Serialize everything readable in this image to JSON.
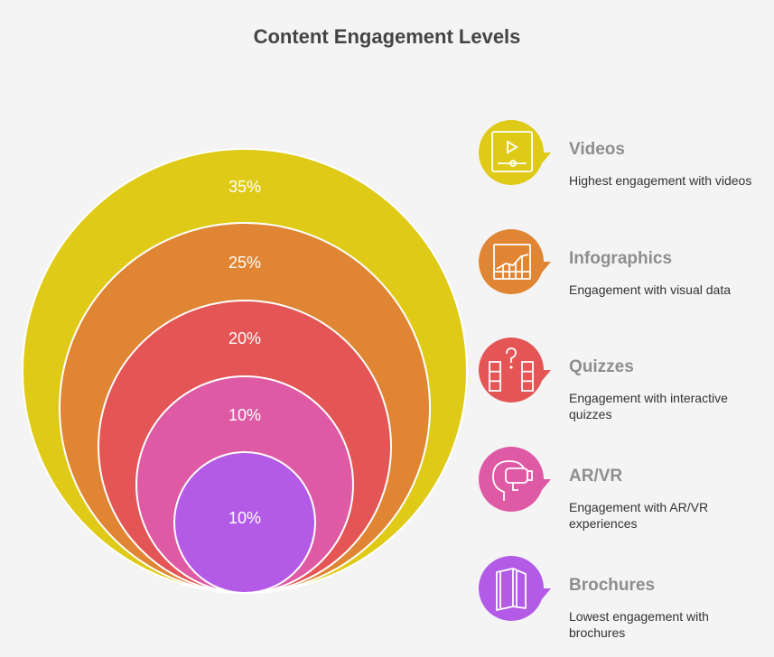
{
  "title": "Content Engagement Levels",
  "chart_data": {
    "type": "nested-circles",
    "categories": [
      "Videos",
      "Infographics",
      "Quizzes",
      "AR/VR",
      "Brochures"
    ],
    "values": [
      35,
      25,
      20,
      10,
      10
    ],
    "labels": [
      "35%",
      "25%",
      "20%",
      "10%",
      "10%"
    ],
    "colors": [
      "#dfcb17",
      "#df8533",
      "#e45555",
      "#df5aa5",
      "#b35be6"
    ]
  },
  "items": [
    {
      "title": "Videos",
      "description": "Highest engagement with videos",
      "icon": "video-player-icon",
      "color": "#dfcb17"
    },
    {
      "title": "Infographics",
      "description": "Engagement with visual data",
      "icon": "chart-icon",
      "color": "#df8533"
    },
    {
      "title": "Quizzes",
      "description": "Engagement with interactive quizzes",
      "icon": "quiz-icon",
      "color": "#e45555"
    },
    {
      "title": "AR/VR",
      "description": "Engagement with AR/VR experiences",
      "icon": "vr-headset-icon",
      "color": "#df5aa5"
    },
    {
      "title": "Brochures",
      "description": "Lowest engagement with brochures",
      "icon": "brochure-icon",
      "color": "#b35be6"
    }
  ]
}
